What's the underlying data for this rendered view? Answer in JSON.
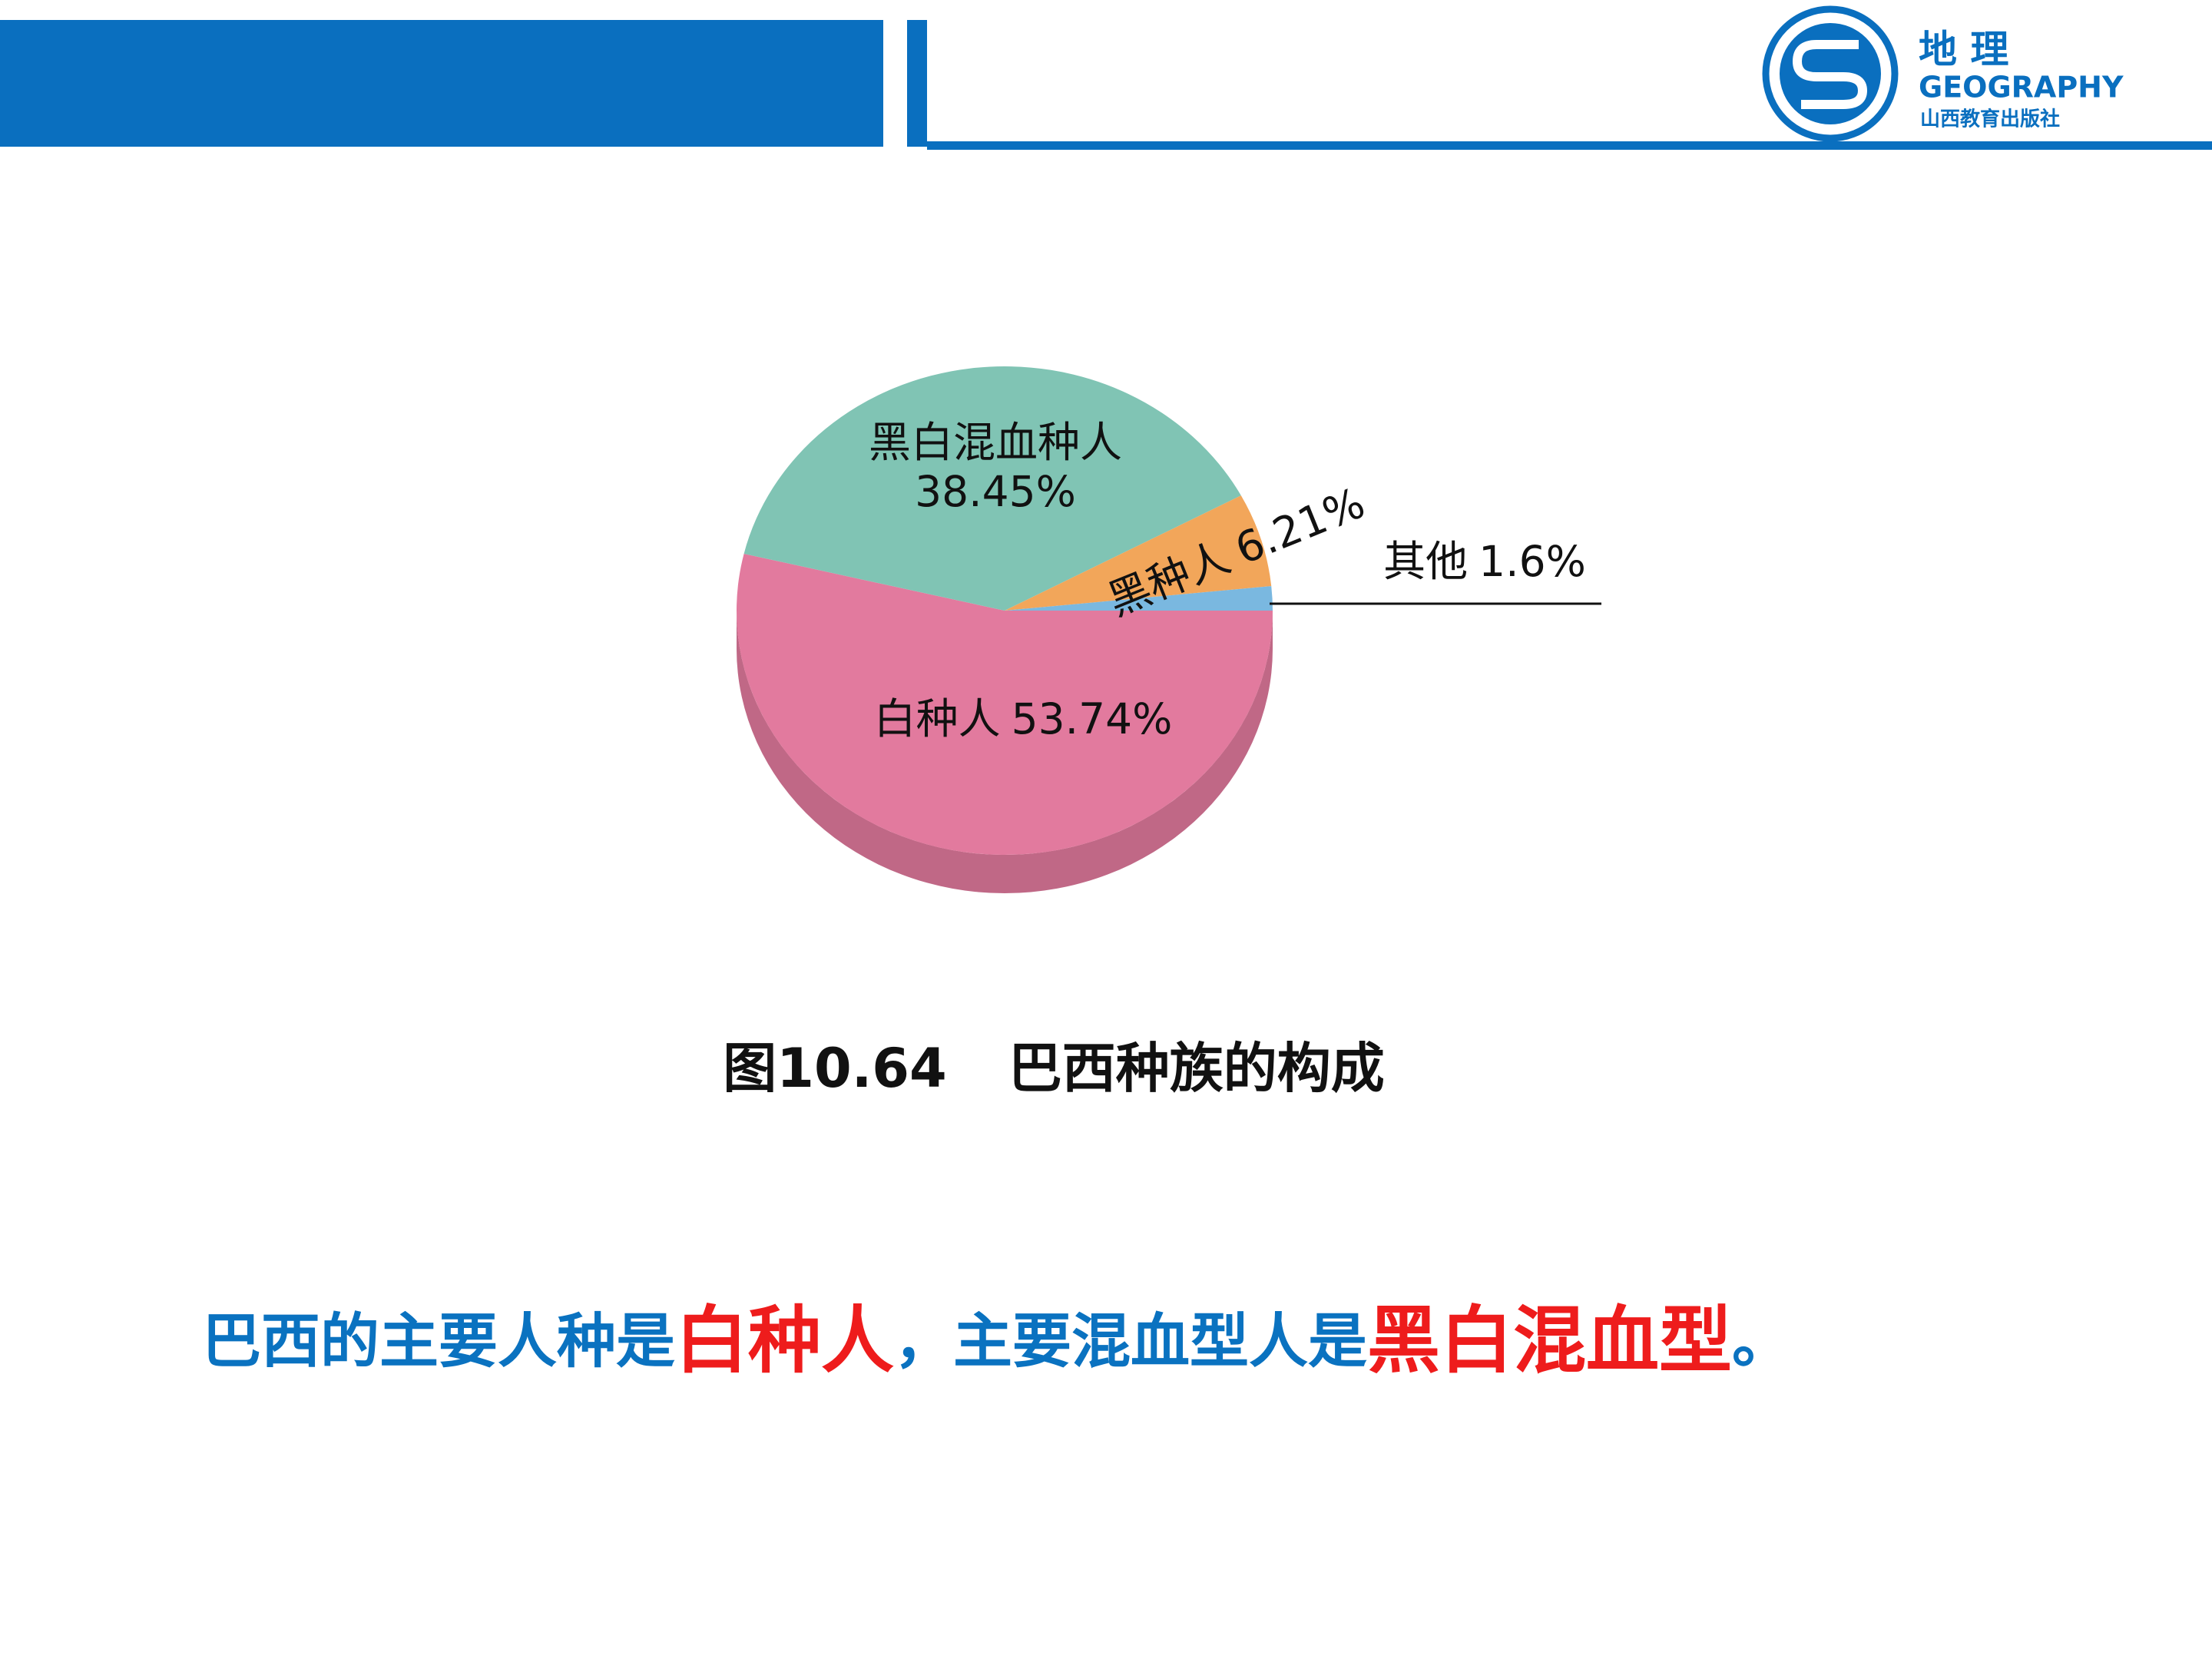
{
  "header": {
    "logo_title": "地 理",
    "logo_subtitle": "GEOGRAPHY",
    "publisher": "山西教育出版社"
  },
  "chart_data": {
    "type": "pie",
    "categories": [
      "白种人",
      "黑白混血种人",
      "黑种人",
      "其他"
    ],
    "values": [
      53.74,
      38.45,
      6.21,
      1.6
    ],
    "value_labels": [
      "53.74%",
      "38.45%",
      "6.21%",
      "1.6%"
    ],
    "colors": [
      "#e27a9e",
      "#80c4b4",
      "#f2a65a",
      "#7ab8e0"
    ]
  },
  "caption": {
    "number": "图10.64",
    "text": "巴西种族的构成"
  },
  "conclusion": [
    {
      "text": "巴西的主要人种是",
      "color": "#0a72c0"
    },
    {
      "text": "白种人",
      "color": "#ee1c1c"
    },
    {
      "text": "，主要混血型人是",
      "color": "#0a72c0"
    },
    {
      "text": "黑白混血型",
      "color": "#ee1c1c"
    },
    {
      "text": "。",
      "color": "#0a72c0"
    }
  ]
}
